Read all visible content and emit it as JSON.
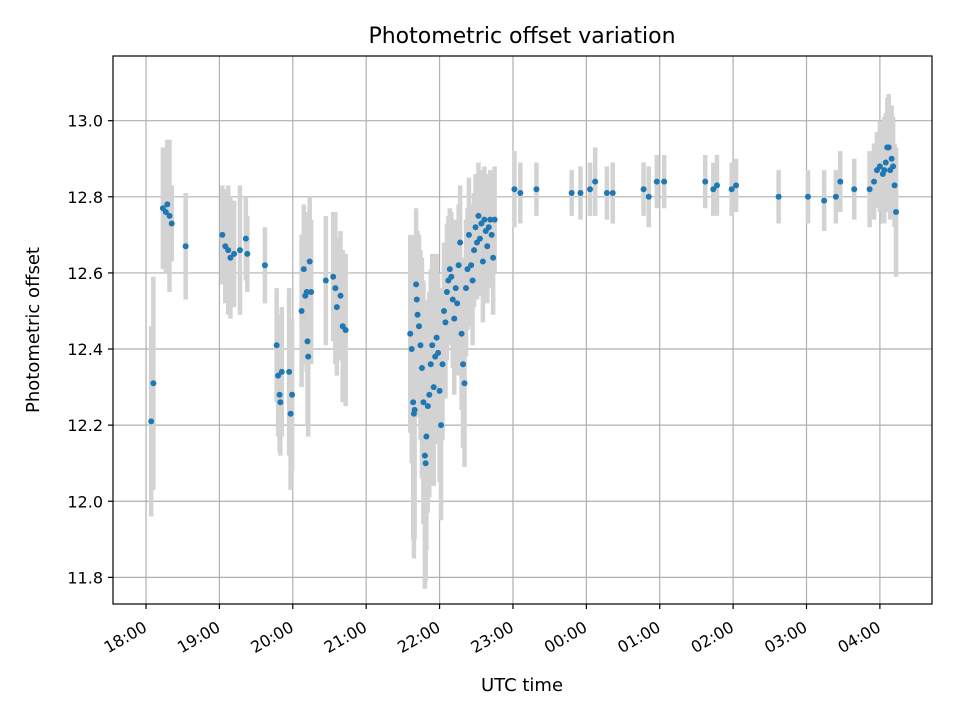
{
  "chart_data": {
    "type": "scatter",
    "title": "Photometric offset variation",
    "xlabel": "UTC time",
    "ylabel": "Photometric offset",
    "x_unit": "hours",
    "xlim": [
      17.55,
      28.71
    ],
    "ylim": [
      11.73,
      13.17
    ],
    "x_ticks": [
      18,
      19,
      20,
      21,
      22,
      23,
      24,
      25,
      26,
      27,
      28
    ],
    "x_tick_labels": [
      "18:00",
      "19:00",
      "20:00",
      "21:00",
      "22:00",
      "23:00",
      "00:00",
      "01:00",
      "02:00",
      "03:00",
      "04:00"
    ],
    "y_ticks": [
      11.8,
      12.0,
      12.2,
      12.4,
      12.6,
      12.8,
      13.0
    ],
    "y_tick_labels": [
      "11.8",
      "12.0",
      "12.2",
      "12.4",
      "12.6",
      "12.8",
      "13.0"
    ],
    "grid": true,
    "colors": {
      "point": "#1f77b4",
      "errorbar": "#d3d3d3",
      "grid": "#b0b0b0"
    },
    "series": [
      {
        "fields": [
          "x",
          "y",
          "err"
        ],
        "points": [
          [
            18.07,
            12.21,
            0.25
          ],
          [
            18.1,
            12.31,
            0.28
          ],
          [
            18.23,
            12.77,
            0.16
          ],
          [
            18.27,
            12.76,
            0.16
          ],
          [
            18.29,
            12.78,
            0.17
          ],
          [
            18.32,
            12.75,
            0.2
          ],
          [
            18.35,
            12.73,
            0.1
          ],
          [
            18.54,
            12.67,
            0.14
          ],
          [
            19.04,
            12.7,
            0.13
          ],
          [
            19.08,
            12.67,
            0.15
          ],
          [
            19.12,
            12.66,
            0.17
          ],
          [
            19.15,
            12.64,
            0.16
          ],
          [
            19.2,
            12.65,
            0.14
          ],
          [
            19.28,
            12.66,
            0.17
          ],
          [
            19.36,
            12.69,
            0.11
          ],
          [
            19.38,
            12.65,
            0.1
          ],
          [
            19.62,
            12.62,
            0.1
          ],
          [
            19.78,
            12.41,
            0.15
          ],
          [
            19.8,
            12.33,
            0.16
          ],
          [
            19.82,
            12.28,
            0.15
          ],
          [
            19.83,
            12.26,
            0.14
          ],
          [
            19.85,
            12.34,
            0.17
          ],
          [
            19.95,
            12.34,
            0.22
          ],
          [
            19.97,
            12.23,
            0.2
          ],
          [
            19.99,
            12.28,
            0.2
          ],
          [
            20.12,
            12.5,
            0.2
          ],
          [
            20.15,
            12.61,
            0.17
          ],
          [
            20.17,
            12.54,
            0.18
          ],
          [
            20.19,
            12.55,
            0.21
          ],
          [
            20.2,
            12.42,
            0.22
          ],
          [
            20.21,
            12.38,
            0.21
          ],
          [
            20.23,
            12.63,
            0.17
          ],
          [
            20.25,
            12.55,
            0.19
          ],
          [
            20.45,
            12.58,
            0.17
          ],
          [
            20.55,
            12.59,
            0.17
          ],
          [
            20.58,
            12.56,
            0.2
          ],
          [
            20.6,
            12.51,
            0.18
          ],
          [
            20.65,
            12.54,
            0.17
          ],
          [
            20.68,
            12.46,
            0.2
          ],
          [
            20.72,
            12.45,
            0.2
          ],
          [
            21.6,
            12.44,
            0.26
          ],
          [
            21.62,
            12.4,
            0.3
          ],
          [
            21.64,
            12.26,
            0.36
          ],
          [
            21.65,
            12.23,
            0.38
          ],
          [
            21.66,
            12.24,
            0.34
          ],
          [
            21.68,
            12.57,
            0.2
          ],
          [
            21.69,
            12.53,
            0.18
          ],
          [
            21.7,
            12.49,
            0.22
          ],
          [
            21.72,
            12.46,
            0.24
          ],
          [
            21.74,
            12.41,
            0.25
          ],
          [
            21.76,
            12.35,
            0.29
          ],
          [
            21.78,
            12.26,
            0.32
          ],
          [
            21.8,
            12.12,
            0.35
          ],
          [
            21.81,
            12.1,
            0.31
          ],
          [
            21.82,
            12.17,
            0.3
          ],
          [
            21.84,
            12.25,
            0.28
          ],
          [
            21.86,
            12.28,
            0.27
          ],
          [
            21.88,
            12.36,
            0.25
          ],
          [
            21.9,
            12.41,
            0.24
          ],
          [
            21.92,
            12.3,
            0.26
          ],
          [
            21.94,
            12.38,
            0.23
          ],
          [
            21.96,
            12.43,
            0.22
          ],
          [
            21.98,
            12.39,
            0.21
          ],
          [
            22.0,
            12.29,
            0.24
          ],
          [
            22.02,
            12.2,
            0.25
          ],
          [
            22.04,
            12.36,
            0.2
          ],
          [
            22.06,
            12.5,
            0.18
          ],
          [
            22.08,
            12.47,
            0.2
          ],
          [
            22.1,
            12.55,
            0.18
          ],
          [
            22.12,
            12.58,
            0.17
          ],
          [
            22.14,
            12.61,
            0.16
          ],
          [
            22.16,
            12.59,
            0.17
          ],
          [
            22.18,
            12.53,
            0.18
          ],
          [
            22.2,
            12.48,
            0.2
          ],
          [
            22.22,
            12.56,
            0.18
          ],
          [
            22.24,
            12.52,
            0.19
          ],
          [
            22.26,
            12.62,
            0.16
          ],
          [
            22.28,
            12.68,
            0.15
          ],
          [
            22.3,
            12.44,
            0.2
          ],
          [
            22.32,
            12.36,
            0.22
          ],
          [
            22.34,
            12.31,
            0.22
          ],
          [
            22.36,
            12.56,
            0.18
          ],
          [
            22.38,
            12.61,
            0.16
          ],
          [
            22.4,
            12.7,
            0.15
          ],
          [
            22.43,
            12.62,
            0.16
          ],
          [
            22.45,
            12.58,
            0.17
          ],
          [
            22.47,
            12.66,
            0.15
          ],
          [
            22.49,
            12.72,
            0.14
          ],
          [
            22.51,
            12.68,
            0.15
          ],
          [
            22.53,
            12.75,
            0.14
          ],
          [
            22.55,
            12.69,
            0.15
          ],
          [
            22.57,
            12.73,
            0.14
          ],
          [
            22.59,
            12.63,
            0.16
          ],
          [
            22.61,
            12.74,
            0.14
          ],
          [
            22.63,
            12.71,
            0.14
          ],
          [
            22.65,
            12.67,
            0.15
          ],
          [
            22.67,
            12.72,
            0.14
          ],
          [
            22.69,
            12.74,
            0.13
          ],
          [
            22.71,
            12.7,
            0.14
          ],
          [
            22.73,
            12.64,
            0.15
          ],
          [
            22.75,
            12.74,
            0.14
          ],
          [
            23.02,
            12.82,
            0.1
          ],
          [
            23.1,
            12.81,
            0.08
          ],
          [
            23.32,
            12.82,
            0.07
          ],
          [
            23.8,
            12.81,
            0.06
          ],
          [
            23.92,
            12.81,
            0.07
          ],
          [
            24.05,
            12.82,
            0.07
          ],
          [
            24.12,
            12.84,
            0.09
          ],
          [
            24.28,
            12.81,
            0.07
          ],
          [
            24.36,
            12.81,
            0.08
          ],
          [
            24.78,
            12.82,
            0.07
          ],
          [
            24.85,
            12.8,
            0.08
          ],
          [
            24.96,
            12.84,
            0.07
          ],
          [
            25.06,
            12.84,
            0.07
          ],
          [
            25.62,
            12.84,
            0.07
          ],
          [
            25.73,
            12.82,
            0.07
          ],
          [
            25.78,
            12.83,
            0.08
          ],
          [
            25.98,
            12.82,
            0.07
          ],
          [
            26.04,
            12.83,
            0.07
          ],
          [
            26.62,
            12.8,
            0.07
          ],
          [
            27.02,
            12.8,
            0.07
          ],
          [
            27.24,
            12.79,
            0.08
          ],
          [
            27.4,
            12.8,
            0.07
          ],
          [
            27.46,
            12.84,
            0.08
          ],
          [
            27.65,
            12.82,
            0.08
          ],
          [
            27.86,
            12.82,
            0.1
          ],
          [
            27.92,
            12.84,
            0.1
          ],
          [
            27.96,
            12.87,
            0.1
          ],
          [
            28.0,
            12.88,
            0.12
          ],
          [
            28.04,
            12.86,
            0.13
          ],
          [
            28.06,
            12.87,
            0.14
          ],
          [
            28.08,
            12.89,
            0.13
          ],
          [
            28.1,
            12.93,
            0.13
          ],
          [
            28.12,
            12.93,
            0.14
          ],
          [
            28.14,
            12.87,
            0.13
          ],
          [
            28.16,
            12.9,
            0.14
          ],
          [
            28.18,
            12.88,
            0.13
          ],
          [
            28.2,
            12.83,
            0.11
          ],
          [
            28.22,
            12.76,
            0.17
          ]
        ]
      }
    ]
  }
}
